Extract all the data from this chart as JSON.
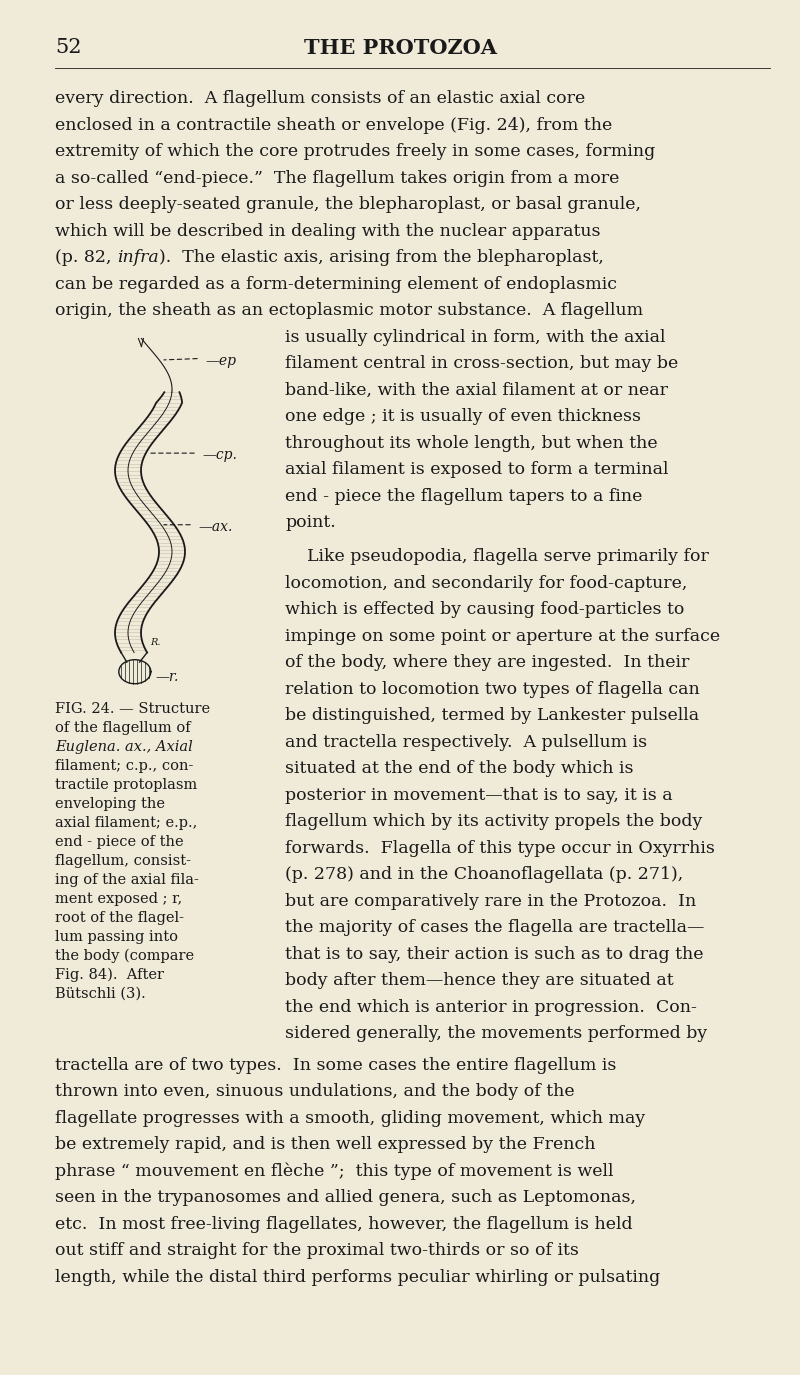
{
  "bg_color": "#f0ead8",
  "page_number": "52",
  "header_title": "THE PROTOZOA",
  "body_text_color": "#1a1a1a",
  "para1_lines": [
    "every direction.  A flagellum consists of an elastic axial core",
    "enclosed in a contractile sheath or envelope (Fig. 24), from the",
    "extremity of which the core protrudes freely in some cases, forming",
    "a so-called “end-piece.”  The flagellum takes origin from a more",
    "or less deeply-seated granule, the blepharoplast, or basal granule,",
    "which will be described in dealing with the nuclear apparatus",
    "(p. 82, infra).  The elastic axis, arising from the blepharoplast,",
    "can be regarded as a form-determining element of endoplasmic",
    "origin, the sheath as an ectoplasmic motor substance.  A flagellum"
  ],
  "para1_italic_line": 6,
  "para1_italic_word": "infra",
  "para2_right_lines": [
    "is usually cylindrical in form, with the axial",
    "filament central in cross-section, but may be",
    "band-like, with the axial filament at or near",
    "one edge ; it is usually of even thickness",
    "throughout its whole length, but when the",
    "axial filament is exposed to form a terminal",
    "end - piece the flagellum tapers to a fine",
    "point."
  ],
  "para3_right_lines": [
    "    Like pseudopodia, flagella serve primarily for",
    "locomotion, and secondarily for food-capture,",
    "which is effected by causing food-particles to",
    "impinge on some point or aperture at the surface",
    "of the body, where they are ingested.  In their",
    "relation to locomotion two types of flagella can",
    "be distinguished, termed by Lankester pulsella",
    "and tractella respectively.  A pulsellum is",
    "situated at the end of the body which is",
    "posterior in movement—that is to say, it is a",
    "flagellum which by its activity propels the body",
    "forwards.  Flagella of this type occur in Oxyrrhis",
    "(p. 278) and in the Choanoflagellata (p. 271),",
    "but are comparatively rare in the Protozoa.  In",
    "the majority of cases the flagella are tractella—",
    "that is to say, their action is such as to drag the",
    "body after them—hence they are situated at",
    "the end which is anterior in progression.  Con-",
    "sidered generally, the movements performed by"
  ],
  "para3_italic_words": [
    "pulsella",
    "tractella",
    "Oxyrrhis"
  ],
  "para4_lines": [
    "tractella are of two types.  In some cases the entire flagellum is",
    "thrown into even, sinuous undulations, and the body of the",
    "flagellate progresses with a smooth, gliding movement, which may",
    "be extremely rapid, and is then well expressed by the French",
    "phrase “ mouvement en flèche ”;  this type of movement is well",
    "seen in the trypanosomes and allied genera, such as Leptomonas,",
    "etc.  In most free-living flagellates, however, the flagellum is held",
    "out stiff and straight for the proximal two-thirds or so of its",
    "length, while the distal third performs peculiar whirling or pulsating"
  ],
  "para4_italic_words": [
    "Leptomonas,"
  ],
  "caption_lines": [
    "FIG. 24. — Structure",
    "of the flagellum of",
    "Euglena. ax., Axial",
    "filament; c.p., con-",
    "tractile protoplasm",
    "enveloping the",
    "axial filament; e.p.,",
    "end - piece of the",
    "flagellum, consist-",
    "ing of the axial fila-",
    "ment exposed ; r,",
    "root of the flagel-",
    "lum passing into",
    "the body (compare",
    "Fig. 84).  After",
    "Bütschli (3)."
  ]
}
